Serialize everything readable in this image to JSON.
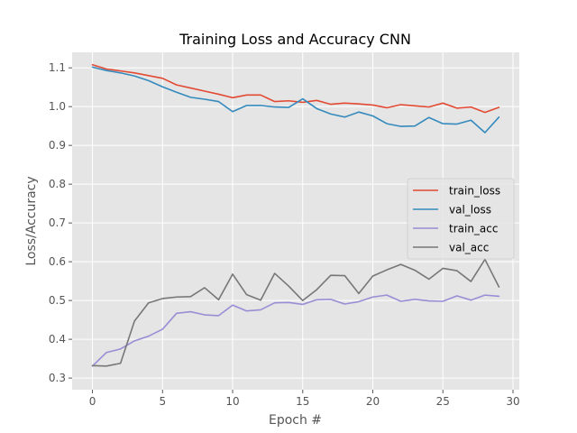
{
  "chart_data": {
    "type": "line",
    "title": "Training Loss and Accuracy CNN",
    "xlabel": "Epoch #",
    "ylabel": "Loss/Accuracy",
    "xlim": [
      -1.45,
      30.45
    ],
    "ylim": [
      0.27,
      1.14
    ],
    "xticks": [
      0,
      5,
      10,
      15,
      20,
      25,
      30
    ],
    "yticks": [
      0.3,
      0.4,
      0.5,
      0.6,
      0.7,
      0.8,
      0.9,
      1.0,
      1.1
    ],
    "xtick_labels": [
      "0",
      "5",
      "10",
      "15",
      "20",
      "25",
      "30"
    ],
    "ytick_labels": [
      "0.3",
      "0.4",
      "0.5",
      "0.6",
      "0.7",
      "0.8",
      "0.9",
      "1.0",
      "1.1"
    ],
    "grid": true,
    "legend_position": "center-right",
    "x": [
      0,
      1,
      2,
      3,
      4,
      5,
      6,
      7,
      8,
      9,
      10,
      11,
      12,
      13,
      14,
      15,
      16,
      17,
      18,
      19,
      20,
      21,
      22,
      23,
      24,
      25,
      26,
      27,
      28,
      29
    ],
    "series": [
      {
        "name": "train_loss",
        "color": "#E24A33",
        "values": [
          1.108,
          1.097,
          1.092,
          1.087,
          1.08,
          1.073,
          1.056,
          1.048,
          1.04,
          1.032,
          1.023,
          1.03,
          1.03,
          1.013,
          1.015,
          1.011,
          1.016,
          1.006,
          1.009,
          1.007,
          1.004,
          0.997,
          1.005,
          1.002,
          0.999,
          1.009,
          0.996,
          0.999,
          0.985,
          0.998
        ]
      },
      {
        "name": "val_loss",
        "color": "#348ABD",
        "values": [
          1.102,
          1.093,
          1.087,
          1.079,
          1.067,
          1.051,
          1.037,
          1.024,
          1.019,
          1.013,
          0.987,
          1.003,
          1.003,
          0.999,
          0.998,
          1.02,
          0.995,
          0.981,
          0.973,
          0.986,
          0.976,
          0.956,
          0.949,
          0.95,
          0.972,
          0.956,
          0.955,
          0.965,
          0.933,
          0.973
        ]
      },
      {
        "name": "train_acc",
        "color": "#988ED5",
        "values": [
          0.331,
          0.366,
          0.375,
          0.396,
          0.408,
          0.426,
          0.467,
          0.471,
          0.463,
          0.461,
          0.488,
          0.473,
          0.476,
          0.494,
          0.495,
          0.49,
          0.502,
          0.503,
          0.491,
          0.497,
          0.509,
          0.514,
          0.498,
          0.503,
          0.499,
          0.498,
          0.512,
          0.501,
          0.514,
          0.511
        ]
      },
      {
        "name": "val_acc",
        "color": "#777777",
        "values": [
          0.332,
          0.331,
          0.338,
          0.447,
          0.494,
          0.505,
          0.509,
          0.51,
          0.533,
          0.502,
          0.568,
          0.515,
          0.501,
          0.57,
          0.537,
          0.5,
          0.528,
          0.565,
          0.564,
          0.518,
          0.563,
          0.579,
          0.593,
          0.578,
          0.555,
          0.583,
          0.577,
          0.549,
          0.606,
          0.535
        ]
      }
    ]
  }
}
